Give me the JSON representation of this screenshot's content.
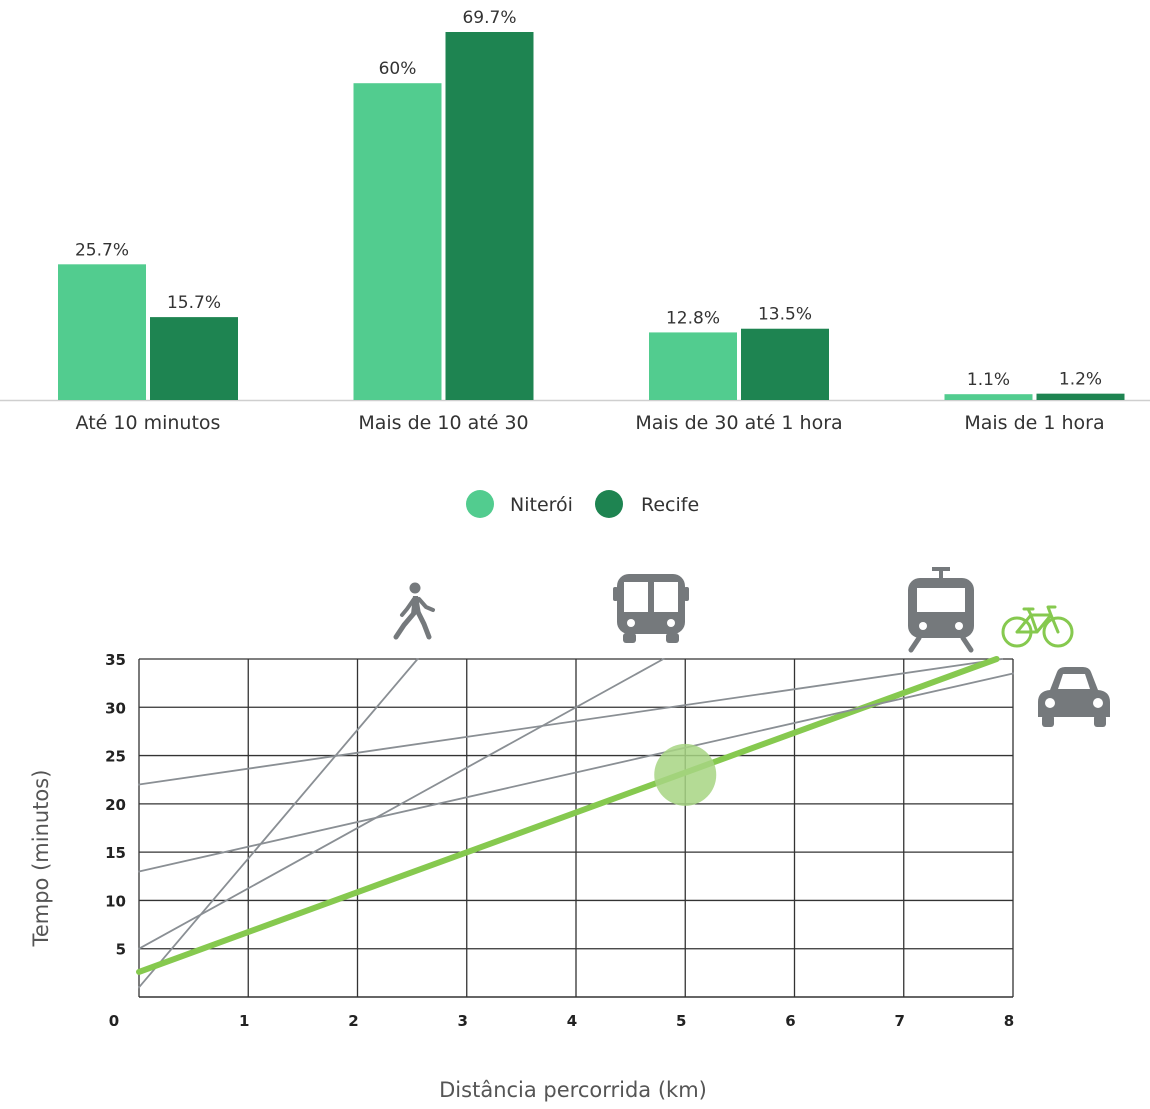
{
  "colors": {
    "niteroi": "#52cc8f",
    "recife": "#1e8451",
    "bike": "#86c94f",
    "bike_marker": "#a7d582",
    "mode_line": "#8a8f94",
    "grid": "#333333",
    "icon": "#75797c"
  },
  "chart_data": [
    {
      "type": "bar",
      "categories": [
        "Até 10 minutos",
        "Mais de 10 até 30",
        "Mais de 30 até 1 hora",
        "Mais de 1 hora"
      ],
      "series": [
        {
          "name": "Niterói",
          "values": [
            25.7,
            60,
            12.8,
            1.1
          ],
          "labels": [
            "25.7%",
            "60%",
            "12.8%",
            "1.1%"
          ]
        },
        {
          "name": "Recife",
          "values": [
            15.7,
            69.7,
            13.5,
            1.2
          ],
          "labels": [
            "15.7%",
            "69.7%",
            "13.5%",
            "1.2%"
          ]
        }
      ],
      "ylim": [
        0,
        72
      ],
      "grid": false,
      "legend": "bottom-center"
    },
    {
      "type": "line",
      "xlabel": "Distância percorrida (km)",
      "ylabel": "Tempo (minutos)",
      "xlim": [
        0,
        8
      ],
      "ylim": [
        0,
        35
      ],
      "x_ticks": [
        "0",
        "1",
        "2",
        "3",
        "4",
        "5",
        "6",
        "7",
        "8"
      ],
      "y_ticks": [
        "5",
        "10",
        "15",
        "20",
        "25",
        "30",
        "35"
      ],
      "grid": true,
      "series": [
        {
          "icon": "walking-person-icon",
          "x": [
            0,
            2.55
          ],
          "y": [
            1,
            35
          ]
        },
        {
          "icon": "bus-icon",
          "x": [
            0,
            4.8
          ],
          "y": [
            5,
            35
          ]
        },
        {
          "icon": "train-icon",
          "x": [
            0,
            7.9
          ],
          "y": [
            22,
            35
          ]
        },
        {
          "icon": "bicycle-icon",
          "x": [
            0,
            7.85
          ],
          "y": [
            2.6,
            35
          ],
          "highlight": true
        },
        {
          "icon": "car-icon",
          "x": [
            0,
            8
          ],
          "y": [
            13,
            33.5
          ]
        }
      ],
      "highlight_point": {
        "x": 5,
        "y": 23
      }
    }
  ]
}
